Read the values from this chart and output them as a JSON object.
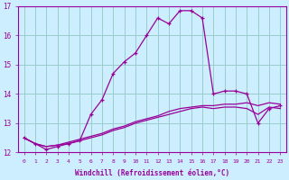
{
  "xlabel": "Windchill (Refroidissement éolien,°C)",
  "background_color": "#cceeff",
  "grid_color": "#99cccc",
  "line_color": "#990099",
  "ylim": [
    12,
    17
  ],
  "xlim": [
    -0.5,
    23.5
  ],
  "yticks": [
    12,
    13,
    14,
    15,
    16,
    17
  ],
  "xticks": [
    0,
    1,
    2,
    3,
    4,
    5,
    6,
    7,
    8,
    9,
    10,
    11,
    12,
    13,
    14,
    15,
    16,
    17,
    18,
    19,
    20,
    21,
    22,
    23
  ],
  "line1_x": [
    0,
    1,
    2,
    3,
    4,
    5,
    6,
    7,
    8,
    9,
    10,
    11,
    12,
    13,
    14,
    15,
    16,
    17,
    18,
    19,
    20,
    21,
    22,
    23
  ],
  "line1_y": [
    12.5,
    12.3,
    12.1,
    12.2,
    12.3,
    12.4,
    13.3,
    13.8,
    14.7,
    15.1,
    15.4,
    16.0,
    16.6,
    16.4,
    16.85,
    16.85,
    16.6,
    14.0,
    14.1,
    14.1,
    14.0,
    13.0,
    13.5,
    13.6
  ],
  "line2_x": [
    0,
    1,
    2,
    3,
    4,
    5,
    6,
    7,
    8,
    9,
    10,
    11,
    12,
    13,
    14,
    15,
    16,
    17,
    18,
    19,
    20,
    21,
    22,
    23
  ],
  "line2_y": [
    12.5,
    12.3,
    12.2,
    12.25,
    12.35,
    12.45,
    12.55,
    12.65,
    12.8,
    12.9,
    13.05,
    13.15,
    13.25,
    13.4,
    13.5,
    13.55,
    13.6,
    13.6,
    13.65,
    13.65,
    13.7,
    13.6,
    13.7,
    13.65
  ],
  "line3_x": [
    0,
    1,
    2,
    3,
    4,
    5,
    6,
    7,
    8,
    9,
    10,
    11,
    12,
    13,
    14,
    15,
    16,
    17,
    18,
    19,
    20,
    21,
    22,
    23
  ],
  "line3_y": [
    12.5,
    12.3,
    12.2,
    12.25,
    12.3,
    12.4,
    12.5,
    12.6,
    12.75,
    12.85,
    13.0,
    13.1,
    13.2,
    13.3,
    13.4,
    13.5,
    13.55,
    13.5,
    13.55,
    13.55,
    13.5,
    13.3,
    13.55,
    13.5
  ]
}
